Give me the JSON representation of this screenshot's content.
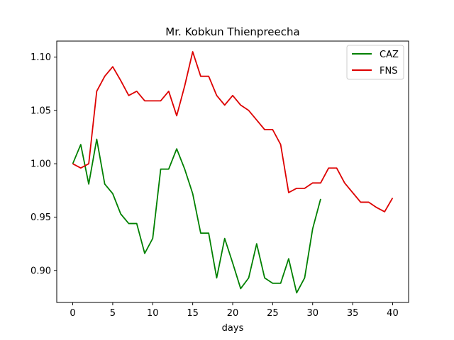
{
  "chart_data": {
    "type": "line",
    "title": "Mr. Kobkun Thienpreecha",
    "xlabel": "days",
    "ylabel": "",
    "xlim": [
      -2,
      42
    ],
    "ylim": [
      0.87,
      1.115
    ],
    "xticks": [
      0,
      5,
      10,
      15,
      20,
      25,
      30,
      35,
      40
    ],
    "yticks": [
      0.9,
      0.95,
      1.0,
      1.05,
      1.1
    ],
    "ytick_labels": [
      "0.90",
      "0.95",
      "1.00",
      "1.05",
      "1.10"
    ],
    "grid": false,
    "legend_position": "top-right",
    "series": [
      {
        "name": "CAZ",
        "color": "#008000",
        "x": [
          0,
          1,
          2,
          3,
          4,
          5,
          6,
          7,
          8,
          9,
          10,
          11,
          12,
          13,
          14,
          15,
          16,
          17,
          18,
          19,
          20,
          21,
          22,
          23,
          24,
          25,
          26,
          27,
          28,
          29,
          30,
          31
        ],
        "y": [
          1.0,
          1.018,
          0.981,
          1.023,
          0.981,
          0.972,
          0.953,
          0.944,
          0.944,
          0.916,
          0.93,
          0.995,
          0.995,
          1.014,
          0.995,
          0.972,
          0.935,
          0.935,
          0.893,
          0.93,
          0.907,
          0.883,
          0.893,
          0.925,
          0.893,
          0.888,
          0.888,
          0.911,
          0.879,
          0.893,
          0.939,
          0.967
        ]
      },
      {
        "name": "FNS",
        "color": "#dd0000",
        "x": [
          0,
          1,
          2,
          3,
          4,
          5,
          6,
          7,
          8,
          9,
          10,
          11,
          12,
          13,
          14,
          15,
          16,
          17,
          18,
          19,
          20,
          21,
          22,
          23,
          24,
          25,
          26,
          27,
          28,
          29,
          30,
          31,
          32,
          33,
          34,
          35,
          36,
          37,
          38,
          39,
          40
        ],
        "y": [
          1.0,
          0.996,
          1.0,
          1.068,
          1.082,
          1.091,
          1.078,
          1.064,
          1.068,
          1.059,
          1.059,
          1.059,
          1.068,
          1.045,
          1.073,
          1.105,
          1.082,
          1.082,
          1.064,
          1.055,
          1.064,
          1.055,
          1.05,
          1.041,
          1.032,
          1.032,
          1.018,
          0.973,
          0.977,
          0.977,
          0.982,
          0.982,
          0.996,
          0.996,
          0.982,
          0.973,
          0.964,
          0.964,
          0.959,
          0.955,
          0.968
        ]
      }
    ]
  }
}
